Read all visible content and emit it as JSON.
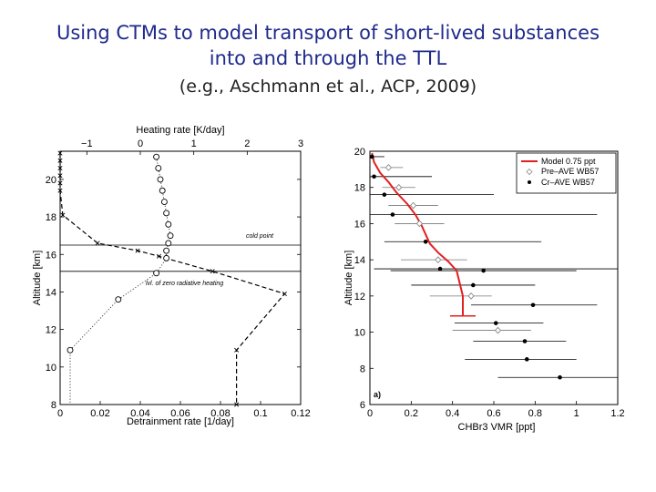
{
  "slide": {
    "title_line1": "Using CTMs to model transport of short-lived substances",
    "title_line2": "into and through the TTL",
    "subtitle": "(e.g., Aschmann et al., ACP, 2009)"
  },
  "colors": {
    "title": "#1f2a8c",
    "model_line": "#e02020"
  },
  "chart_data": [
    {
      "type": "line",
      "ylabel": "Altitude [km]",
      "ylim": [
        8,
        21.5
      ],
      "yticks": [
        8,
        10,
        12,
        14,
        16,
        18,
        20
      ],
      "top_axis": {
        "label": "Heating rate [K/day]",
        "xlim": [
          -1.5,
          3
        ],
        "ticks": [
          -1,
          0,
          1,
          2,
          3
        ]
      },
      "bottom_axis": {
        "label": "Detrainment rate [1/day]",
        "xlim": [
          0,
          0.12
        ],
        "ticks": [
          0,
          0.02,
          0.04,
          0.06,
          0.08,
          0.1,
          0.12
        ]
      },
      "hlines": [
        {
          "y": 16.5,
          "label": "cold point"
        },
        {
          "y": 15.1,
          "label": "lvl. of zero radiative heating"
        }
      ],
      "series": [
        {
          "axis": "top",
          "style": "dashed-cross",
          "x": [
            -1.5,
            -1.5,
            -1.5,
            -1.5,
            -1.5,
            -1.5,
            -1.45,
            -0.8,
            -0.05,
            0.35,
            1.35,
            2.7,
            1.8,
            1.8
          ],
          "y": [
            21.4,
            21,
            20.6,
            20.2,
            19.8,
            19.4,
            18.1,
            16.6,
            16.2,
            15.9,
            15.1,
            13.9,
            10.9,
            8
          ]
        },
        {
          "axis": "bottom",
          "style": "dotted-circle",
          "x": [
            0.048,
            0.049,
            0.05,
            0.051,
            0.052,
            0.053,
            0.054,
            0.055,
            0.054,
            0.053,
            0.053,
            0.048,
            0.029,
            0.005,
            0.005
          ],
          "y": [
            21.2,
            20.6,
            20.0,
            19.4,
            18.8,
            18.2,
            17.6,
            17.0,
            16.6,
            16.2,
            15.8,
            15.0,
            13.6,
            10.9,
            8
          ]
        }
      ]
    },
    {
      "type": "line",
      "xlabel": "CHBr3 VMR [ppt]",
      "ylabel": "Altitude [km]",
      "xlim": [
        0,
        1.2
      ],
      "ylim": [
        6,
        20
      ],
      "xticks": [
        0,
        0.2,
        0.4,
        0.6,
        0.8,
        1,
        1.2
      ],
      "yticks": [
        6,
        8,
        10,
        12,
        14,
        16,
        18,
        20
      ],
      "annotation": "a)",
      "legend": {
        "placement": "top-right",
        "entries": [
          "Model 0.75 ppt",
          "Pre–AVE WB57",
          "Cr–AVE WB57"
        ]
      },
      "series": [
        {
          "name": "Model 0.75 ppt",
          "style": "line",
          "x": [
            0.01,
            0.02,
            0.05,
            0.09,
            0.13,
            0.18,
            0.22,
            0.25,
            0.27,
            0.29,
            0.33,
            0.38,
            0.42,
            0.45,
            0.45
          ],
          "y": [
            19.9,
            19.4,
            18.8,
            18.3,
            17.7,
            17.1,
            16.5,
            15.9,
            15.4,
            14.9,
            14.4,
            13.9,
            13.4,
            12.0,
            10.9
          ]
        },
        {
          "name": "Pre–AVE WB57",
          "style": "open-diamond",
          "x": [
            0.09,
            0.14,
            0.21,
            0.24,
            0.33,
            0.49,
            0.62
          ],
          "y": [
            19.1,
            18.0,
            17.0,
            16.0,
            14.0,
            12.0,
            10.1
          ],
          "xerr_low": [
            0.04,
            0.08,
            0.12,
            0.12,
            0.18,
            0.2,
            0.22
          ],
          "xerr_high": [
            0.07,
            0.08,
            0.12,
            0.12,
            0.14,
            0.1,
            0.16
          ]
        },
        {
          "name": "Cr–AVE WB57",
          "style": "filled-dot",
          "x": [
            0.01,
            0.02,
            0.07,
            0.11,
            0.27,
            0.34,
            0.55,
            0.5,
            0.79,
            0.61,
            0.75,
            0.76,
            0.92
          ],
          "y": [
            19.7,
            18.6,
            17.6,
            16.5,
            15.0,
            13.5,
            13.4,
            12.6,
            11.5,
            10.5,
            9.5,
            8.5,
            7.5
          ],
          "xerr_low": [
            0.01,
            0.02,
            0.07,
            0.11,
            0.2,
            0.32,
            0.45,
            0.3,
            0.3,
            0.2,
            0.25,
            0.3,
            0.3
          ],
          "xerr_high": [
            0.06,
            0.28,
            0.53,
            0.99,
            0.56,
            0.86,
            0.45,
            0.3,
            0.31,
            0.23,
            0.2,
            0.24,
            0.28
          ]
        }
      ]
    }
  ]
}
